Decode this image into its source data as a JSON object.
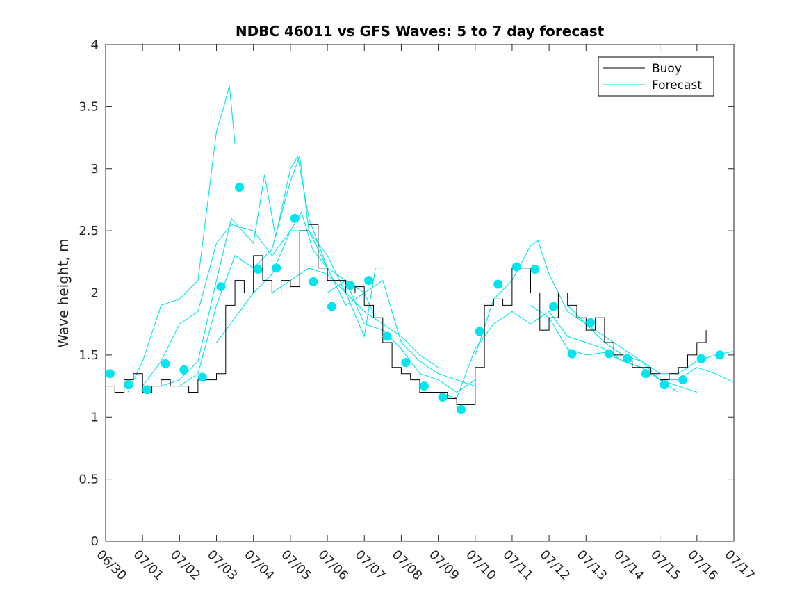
{
  "chart_data": {
    "type": "line",
    "title": "NDBC 46011 vs GFS Waves: 5 to 7 day forecast",
    "ylabel": "Wave height, m",
    "xlabel": "",
    "ylim": [
      0,
      4
    ],
    "xlim_days": [
      0,
      17
    ],
    "yticks": [
      0,
      0.5,
      1,
      1.5,
      2,
      2.5,
      3,
      3.5,
      4
    ],
    "ytick_labels": [
      "0",
      "0.5",
      "1",
      "1.5",
      "2",
      "2.5",
      "3",
      "3.5",
      "4"
    ],
    "xtick_labels": [
      "06/30",
      "07/01",
      "07/02",
      "07/03",
      "07/04",
      "07/05",
      "07/06",
      "07/07",
      "07/08",
      "07/09",
      "07/10",
      "07/11",
      "07/12",
      "07/13",
      "07/14",
      "07/15",
      "07/16",
      "07/17"
    ],
    "legend": {
      "position": "top-right",
      "entries": [
        {
          "label": "Buoy",
          "color": "#000000"
        },
        {
          "label": "Forecast",
          "color": "#00e5ee"
        }
      ]
    },
    "colors": {
      "buoy": "#000000",
      "forecast": "#00e5ee"
    },
    "buoy": {
      "x": [
        0,
        0.25,
        0.5,
        0.75,
        1,
        1.25,
        1.5,
        1.75,
        2,
        2.25,
        2.5,
        2.75,
        3,
        3.25,
        3.5,
        3.75,
        4,
        4.25,
        4.5,
        4.75,
        5,
        5.25,
        5.5,
        5.75,
        6,
        6.25,
        6.5,
        6.75,
        7,
        7.25,
        7.5,
        7.75,
        8,
        8.25,
        8.5,
        8.75,
        9,
        9.25,
        9.5,
        9.75,
        10,
        10.25,
        10.5,
        10.75,
        11,
        11.25,
        11.5,
        11.75,
        12,
        12.25,
        12.5,
        12.75,
        13,
        13.25,
        13.5,
        13.75,
        14,
        14.25,
        14.5,
        14.75,
        15,
        15.25,
        15.5,
        15.75,
        16,
        16.25
      ],
      "y": [
        1.25,
        1.2,
        1.3,
        1.35,
        1.2,
        1.25,
        1.3,
        1.25,
        1.25,
        1.2,
        1.3,
        1.3,
        1.35,
        1.9,
        2.1,
        2.0,
        2.3,
        2.1,
        2.0,
        2.1,
        2.05,
        2.5,
        2.55,
        2.2,
        2.1,
        2.1,
        2.0,
        2.05,
        1.9,
        1.8,
        1.6,
        1.4,
        1.35,
        1.3,
        1.2,
        1.2,
        1.2,
        1.15,
        1.1,
        1.1,
        1.4,
        1.9,
        1.95,
        1.9,
        2.2,
        2.2,
        2.0,
        1.7,
        1.8,
        2.0,
        1.9,
        1.8,
        1.7,
        1.8,
        1.6,
        1.5,
        1.45,
        1.4,
        1.4,
        1.35,
        1.3,
        1.35,
        1.4,
        1.5,
        1.6,
        1.7
      ]
    },
    "forecast_series": [
      {
        "x": [
          0.6,
          1.0,
          1.5,
          2.0,
          2.5,
          3.0,
          3.2,
          3.35,
          3.5
        ],
        "y": [
          1.2,
          1.45,
          1.9,
          1.95,
          2.1,
          3.3,
          3.5,
          3.67,
          3.2
        ]
      },
      {
        "x": [
          1.0,
          1.5,
          2.0,
          2.5,
          3.0,
          3.4,
          4.0,
          4.5,
          5.0,
          5.3,
          5.6,
          6.0
        ],
        "y": [
          1.25,
          1.45,
          1.75,
          1.85,
          2.4,
          2.55,
          2.5,
          2.3,
          2.5,
          2.65,
          2.35,
          2.2
        ]
      },
      {
        "x": [
          1.5,
          2.0,
          2.5,
          3.0,
          3.4,
          4.0,
          4.3,
          4.6,
          5.0,
          5.2,
          5.5,
          6.0,
          6.5,
          7.0,
          7.3
        ],
        "y": [
          1.25,
          1.3,
          1.45,
          2.1,
          2.6,
          2.4,
          2.95,
          2.45,
          3.0,
          3.1,
          2.6,
          2.2,
          2.1,
          2.0,
          1.8
        ]
      },
      {
        "x": [
          2.0,
          2.5,
          3.0,
          3.5,
          4.0,
          4.5,
          5.0,
          5.25,
          5.5,
          6.0,
          6.5,
          7.0,
          7.5,
          8.0,
          8.5,
          9.0
        ],
        "y": [
          1.25,
          1.35,
          1.9,
          2.3,
          2.2,
          2.35,
          2.9,
          3.1,
          2.5,
          2.3,
          2.0,
          1.85,
          1.75,
          1.65,
          1.5,
          1.4
        ]
      },
      {
        "x": [
          3.0,
          3.5,
          4.0,
          4.5,
          5.0,
          5.5,
          6.0,
          6.5,
          7.0,
          7.5,
          8.0,
          8.5,
          9.0,
          9.5,
          10.0
        ],
        "y": [
          1.6,
          1.8,
          2.0,
          2.15,
          2.5,
          2.5,
          2.2,
          1.9,
          2.0,
          2.1,
          1.6,
          1.45,
          1.35,
          1.3,
          1.25
        ]
      },
      {
        "x": [
          4.5,
          5.0,
          5.5,
          6.0,
          6.5,
          7.0,
          7.3,
          7.5
        ],
        "y": [
          2.0,
          2.1,
          2.2,
          2.15,
          2.0,
          1.65,
          2.2,
          2.2
        ]
      },
      {
        "x": [
          6.0,
          6.5,
          7.0,
          7.5,
          8.0,
          8.5,
          9.0,
          9.5,
          10.0
        ],
        "y": [
          2.0,
          2.1,
          1.75,
          1.7,
          1.55,
          1.35,
          1.3,
          1.2,
          1.3
        ]
      },
      {
        "x": [
          9.0,
          9.5,
          10.0,
          10.5,
          11.0,
          11.5,
          12.0,
          12.5,
          13.0,
          13.5,
          14.0,
          14.5,
          15.0,
          15.5,
          16.0
        ],
        "y": [
          1.2,
          1.15,
          1.55,
          1.75,
          1.85,
          1.75,
          1.85,
          1.65,
          1.6,
          1.55,
          1.45,
          1.4,
          1.3,
          1.25,
          1.2
        ]
      },
      {
        "x": [
          10.0,
          10.5,
          11.0,
          11.5,
          11.7,
          12.0,
          12.5,
          13.0,
          13.5,
          14.0,
          14.5,
          15.0,
          15.5
        ],
        "y": [
          1.5,
          1.95,
          2.1,
          2.38,
          2.42,
          2.15,
          1.85,
          1.75,
          1.65,
          1.55,
          1.45,
          1.3,
          1.2
        ]
      },
      {
        "x": [
          11.5,
          12.0,
          12.5,
          13.0,
          13.5,
          14.0,
          14.5,
          15.0,
          15.5,
          16.0,
          16.5,
          17.0
        ],
        "y": [
          1.9,
          1.8,
          1.55,
          1.5,
          1.52,
          1.45,
          1.4,
          1.3,
          1.3,
          1.4,
          1.35,
          1.28
        ]
      },
      {
        "x": [
          12.5,
          13.0,
          13.5,
          14.0,
          14.5,
          15.0,
          15.5,
          16.0,
          16.5,
          17.0
        ],
        "y": [
          1.9,
          1.75,
          1.6,
          1.5,
          1.45,
          1.35,
          1.35,
          1.45,
          1.5,
          1.53
        ]
      }
    ],
    "forecast_points": {
      "x": [
        0.12,
        0.62,
        1.12,
        1.62,
        2.12,
        2.62,
        3.12,
        3.62,
        4.12,
        4.62,
        5.12,
        5.62,
        6.12,
        6.62,
        7.12,
        7.62,
        8.12,
        8.62,
        9.12,
        9.62,
        10.12,
        10.62,
        11.12,
        11.62,
        12.12,
        12.62,
        13.12,
        13.62,
        14.12,
        14.62,
        15.12,
        15.62,
        16.12,
        16.62
      ],
      "y": [
        1.35,
        1.26,
        1.22,
        1.43,
        1.38,
        1.32,
        2.05,
        2.85,
        2.19,
        2.2,
        2.6,
        2.09,
        1.89,
        2.06,
        2.1,
        1.65,
        1.44,
        1.25,
        1.16,
        1.06,
        1.69,
        2.07,
        2.21,
        2.19,
        1.89,
        1.51,
        1.76,
        1.51,
        1.47,
        1.35,
        1.26,
        1.3,
        1.47,
        1.5
      ]
    }
  }
}
